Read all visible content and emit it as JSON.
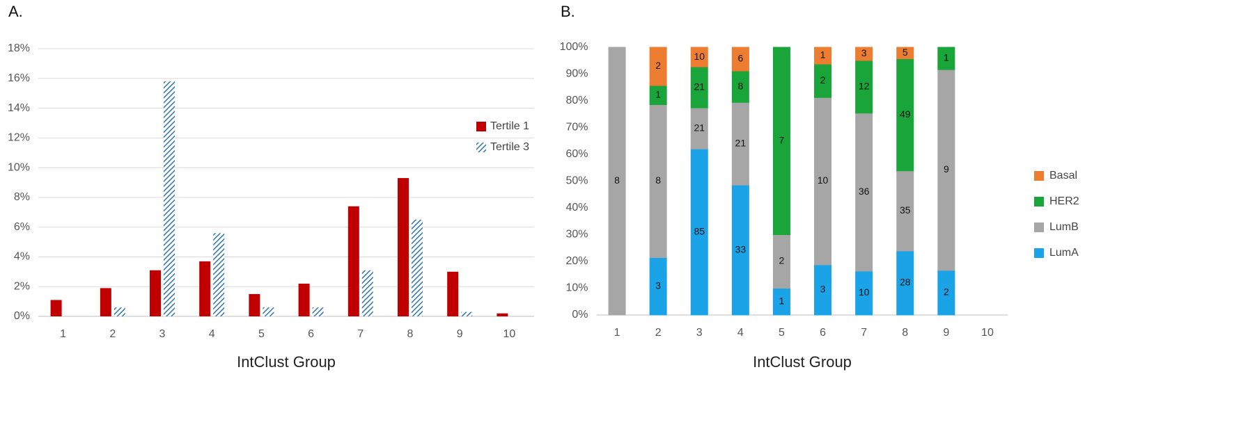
{
  "chart_data": [
    {
      "type": "grouped_bar",
      "panel_label": "A.",
      "x_label": "IntClust Group",
      "categories": [
        "1",
        "2",
        "3",
        "4",
        "5",
        "6",
        "7",
        "8",
        "9",
        "10"
      ],
      "series": [
        {
          "name": "Tertile 1",
          "color": "#c00000",
          "pattern": "solid",
          "values": [
            1.1,
            1.9,
            3.1,
            3.7,
            1.5,
            2.2,
            7.4,
            9.3,
            3.0,
            0.2
          ]
        },
        {
          "name": "Tertile 3",
          "color": "#2e75b6",
          "pattern": "hatch",
          "values": [
            null,
            0.6,
            15.8,
            5.6,
            0.6,
            0.6,
            3.1,
            6.5,
            0.3,
            null
          ]
        }
      ],
      "ylim": [
        0,
        18
      ],
      "yticks": [
        {
          "value": 0,
          "label": "0%"
        },
        {
          "value": 2,
          "label": "2%"
        },
        {
          "value": 4,
          "label": "4%"
        },
        {
          "value": 6,
          "label": "6%"
        },
        {
          "value": 8,
          "label": "8%"
        },
        {
          "value": 10,
          "label": "10%"
        },
        {
          "value": 12,
          "label": "12%"
        },
        {
          "value": 14,
          "label": "14%"
        },
        {
          "value": 16,
          "label": "16%"
        },
        {
          "value": 18,
          "label": "18%"
        }
      ],
      "grid": true,
      "legend": "right"
    },
    {
      "type": "percent_stacked_bar",
      "panel_label": "B.",
      "x_label": "IntClust Group",
      "categories": [
        "1",
        "2",
        "3",
        "4",
        "5",
        "6",
        "7",
        "8",
        "9",
        "10"
      ],
      "series": [
        {
          "name": "Basal",
          "color": "#ed7d31",
          "values": [
            null,
            2,
            10,
            6,
            null,
            1,
            3,
            5,
            null,
            null
          ]
        },
        {
          "name": "HER2",
          "color": "#1aa53a",
          "values": [
            null,
            1,
            21,
            8,
            7,
            2,
            12,
            49,
            1,
            null
          ]
        },
        {
          "name": "LumB",
          "color": "#a6a6a6",
          "values": [
            8,
            8,
            21,
            21,
            2,
            10,
            36,
            35,
            9,
            null
          ]
        },
        {
          "name": "LumA",
          "color": "#1ba3e8",
          "values": [
            null,
            3,
            85,
            33,
            1,
            3,
            10,
            28,
            2,
            null
          ]
        }
      ],
      "ylim": [
        0,
        100
      ],
      "yticks": [
        {
          "value": 0,
          "label": "0%"
        },
        {
          "value": 10,
          "label": "10%"
        },
        {
          "value": 20,
          "label": "20%"
        },
        {
          "value": 30,
          "label": "30%"
        },
        {
          "value": 40,
          "label": "40%"
        },
        {
          "value": 50,
          "label": "50%"
        },
        {
          "value": 60,
          "label": "60%"
        },
        {
          "value": 70,
          "label": "70%"
        },
        {
          "value": 80,
          "label": "80%"
        },
        {
          "value": 90,
          "label": "90%"
        },
        {
          "value": 100,
          "label": "100%"
        }
      ],
      "grid": false,
      "legend": "right"
    }
  ]
}
